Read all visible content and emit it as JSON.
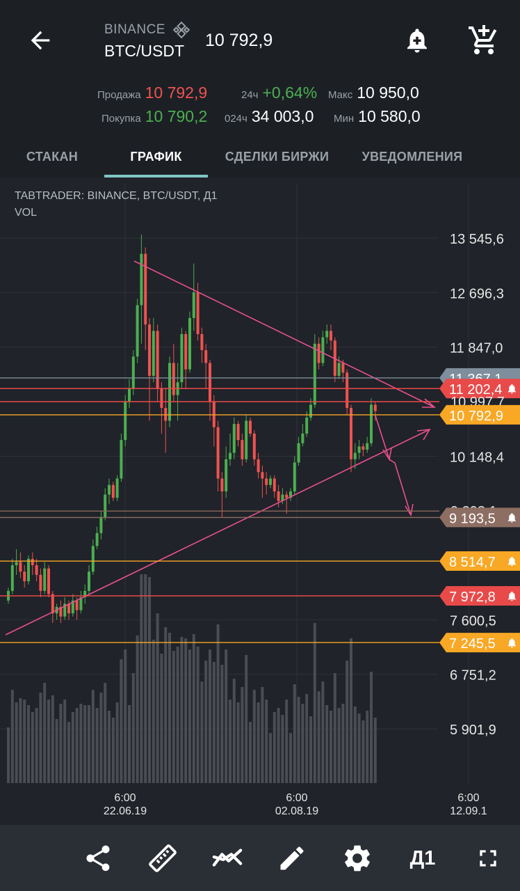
{
  "header": {
    "exchange": "BINANCE",
    "pair": "BTC/USDT",
    "last_price": "10 792,9"
  },
  "stats": {
    "sell_label": "Продажа",
    "sell_value": "10 792,9",
    "buy_label": "Покупка",
    "buy_value": "10 790,2",
    "change_label": "24ч",
    "change_value": "+0,64%",
    "volume_label": "024ч",
    "volume_value": "34 003,0",
    "max_label": "Макс",
    "max_value": "10 950,0",
    "min_label": "Мин",
    "min_value": "10 580,0"
  },
  "tabs": [
    {
      "label": "СТАКАН"
    },
    {
      "label": "ГРАФИК"
    },
    {
      "label": "СДЕЛКИ БИРЖИ"
    },
    {
      "label": "УВЕДОМЛЕНИЯ"
    }
  ],
  "chart_data": {
    "type": "candlestick",
    "title": "TABTRADER: BINANCE, BTC/USDT, Д1",
    "subtitle": "VOL",
    "price_ticks": [
      "13 545,6",
      "12 696,3",
      "11 847,0",
      "10 148,4",
      "7 600,5",
      "6 751,2",
      "5 901,9"
    ],
    "x_ticks": [
      {
        "time": "6:00",
        "date": "22.06.19"
      },
      {
        "time": "6:00",
        "date": "02.08.19"
      },
      {
        "time": "6:00",
        "date": "12.09.1"
      }
    ],
    "price_range": [
      5901.9,
      13545.6
    ],
    "levels": [
      {
        "price": 11367.1,
        "label": "11 367,1",
        "color": "#7e8e9c",
        "alert": false
      },
      {
        "price": 11202.4,
        "label": "11 202,4",
        "color": "#e84a4a",
        "alert": true
      },
      {
        "price": 10997.7,
        "label": "10 997,7",
        "color": "#e84a4a",
        "alert": false,
        "hidden": true
      },
      {
        "price": 10792.9,
        "label": "10 792,9",
        "color": "#f8a825",
        "alert": false
      },
      {
        "price": 9293.1,
        "label": "9 293,1",
        "color": "#8a6a5a",
        "alert": false,
        "hidden": true
      },
      {
        "price": 9193.5,
        "label": "9 193,5",
        "color": "#8d6e63",
        "alert": true
      },
      {
        "price": 8514.7,
        "label": "8 514,7",
        "color": "#f8a825",
        "alert": true
      },
      {
        "price": 7972.8,
        "label": "7 972,8",
        "color": "#e84a4a",
        "alert": true
      },
      {
        "price": 7245.5,
        "label": "7 245,5",
        "color": "#f8a825",
        "alert": true
      }
    ],
    "candles_ohlc": [
      [
        7900,
        8050,
        7850,
        8100
      ],
      [
        8050,
        8450,
        8000,
        8550
      ],
      [
        8450,
        8500,
        8300,
        8700
      ],
      [
        8500,
        8350,
        8250,
        8650
      ],
      [
        8350,
        8200,
        8100,
        8450
      ],
      [
        8200,
        8550,
        8150,
        8600
      ],
      [
        8550,
        8450,
        8300,
        8650
      ],
      [
        8450,
        8300,
        8200,
        8550
      ],
      [
        8300,
        8050,
        7950,
        8400
      ],
      [
        8050,
        8400,
        8000,
        8500
      ],
      [
        8400,
        8000,
        7950,
        8450
      ],
      [
        8000,
        7700,
        7550,
        8050
      ],
      [
        7700,
        7800,
        7600,
        7850
      ],
      [
        7800,
        7650,
        7550,
        7900
      ],
      [
        7650,
        7850,
        7600,
        7950
      ],
      [
        7850,
        7700,
        7600,
        7900
      ],
      [
        7700,
        7900,
        7650,
        8000
      ],
      [
        7900,
        7750,
        7600,
        7950
      ],
      [
        7750,
        7950,
        7700,
        8050
      ],
      [
        7950,
        8050,
        7850,
        8150
      ],
      [
        8050,
        8350,
        8000,
        8450
      ],
      [
        8350,
        8750,
        8300,
        8850
      ],
      [
        8750,
        8950,
        8700,
        9050
      ],
      [
        8950,
        9200,
        8850,
        9300
      ],
      [
        9200,
        9550,
        9150,
        9650
      ],
      [
        9550,
        9700,
        9400,
        9800
      ],
      [
        9700,
        9500,
        9450,
        9750
      ],
      [
        9500,
        9800,
        9450,
        9850
      ],
      [
        9800,
        10400,
        9750,
        10500
      ],
      [
        10400,
        11000,
        10300,
        11100
      ],
      [
        11000,
        11200,
        10900,
        11350
      ],
      [
        11200,
        11700,
        11100,
        11800
      ],
      [
        11700,
        12500,
        11600,
        12600
      ],
      [
        12500,
        13300,
        11900,
        13600
      ],
      [
        13300,
        12200,
        11800,
        13400
      ],
      [
        12200,
        11400,
        10700,
        12300
      ],
      [
        11400,
        12100,
        11300,
        12300
      ],
      [
        12100,
        11200,
        11000,
        12200
      ],
      [
        11200,
        10900,
        10500,
        11300
      ],
      [
        10900,
        10700,
        10200,
        11200
      ],
      [
        10700,
        11600,
        10600,
        11700
      ],
      [
        11600,
        11100,
        11000,
        11900
      ],
      [
        11100,
        11300,
        10700,
        11600
      ],
      [
        11300,
        12050,
        11200,
        12150
      ],
      [
        12050,
        11500,
        11200,
        12100
      ],
      [
        11500,
        12300,
        11450,
        12400
      ],
      [
        12300,
        12700,
        12100,
        13150
      ],
      [
        12700,
        12050,
        11950,
        12850
      ],
      [
        12050,
        11800,
        11600,
        12150
      ],
      [
        11800,
        11600,
        11200,
        11900
      ],
      [
        11600,
        11000,
        10700,
        11650
      ],
      [
        11000,
        10600,
        10300,
        11100
      ],
      [
        10600,
        9800,
        9600,
        10700
      ],
      [
        9800,
        9600,
        9200,
        9900
      ],
      [
        9600,
        10100,
        9500,
        10300
      ],
      [
        10100,
        10200,
        10000,
        10500
      ],
      [
        10200,
        10650,
        10100,
        10750
      ],
      [
        10650,
        10400,
        10300,
        10700
      ],
      [
        10400,
        10100,
        10000,
        10500
      ],
      [
        10100,
        10700,
        10050,
        10800
      ],
      [
        10700,
        10500,
        10450,
        10750
      ],
      [
        10500,
        10100,
        10000,
        10550
      ],
      [
        10100,
        9900,
        9800,
        10200
      ],
      [
        9900,
        9800,
        9500,
        10000
      ],
      [
        9800,
        9700,
        9550,
        9900
      ],
      [
        9700,
        9800,
        9650,
        9850
      ],
      [
        9800,
        9600,
        9500,
        9850
      ],
      [
        9600,
        9450,
        9350,
        9700
      ],
      [
        9450,
        9550,
        9400,
        9650
      ],
      [
        9550,
        9500,
        9250,
        9600
      ],
      [
        9500,
        9600,
        9450,
        9650
      ],
      [
        9600,
        10050,
        9550,
        10150
      ],
      [
        10050,
        10350,
        10000,
        10450
      ],
      [
        10350,
        10500,
        10300,
        10650
      ],
      [
        10500,
        10750,
        10450,
        10850
      ],
      [
        10750,
        10950,
        10700,
        11050
      ],
      [
        10950,
        11900,
        10900,
        12050
      ],
      [
        11900,
        11600,
        11500,
        12000
      ],
      [
        11600,
        12000,
        11550,
        12100
      ],
      [
        12000,
        12100,
        11900,
        12200
      ],
      [
        12100,
        11950,
        11800,
        12200
      ],
      [
        11950,
        11400,
        11300,
        12000
      ],
      [
        11400,
        11600,
        11350,
        11700
      ],
      [
        11600,
        11450,
        11300,
        11650
      ],
      [
        11450,
        10900,
        10800,
        11500
      ],
      [
        10900,
        10100,
        9900,
        10950
      ],
      [
        10100,
        10200,
        9950,
        10350
      ],
      [
        10200,
        10300,
        10100,
        10400
      ],
      [
        10300,
        10250,
        10150,
        10350
      ],
      [
        10250,
        10350,
        10200,
        10450
      ],
      [
        10350,
        10950,
        10300,
        11050
      ],
      [
        10950,
        10850,
        10700,
        11000
      ]
    ]
  },
  "toolbar": {
    "share_icon": "share-icon",
    "ruler_icon": "ruler-icon",
    "indicators_icon": "indicators-icon",
    "pencil_icon": "pencil-icon",
    "settings_icon": "gear-icon",
    "interval_label": "Д1",
    "fullscreen_icon": "fullscreen-icon"
  }
}
